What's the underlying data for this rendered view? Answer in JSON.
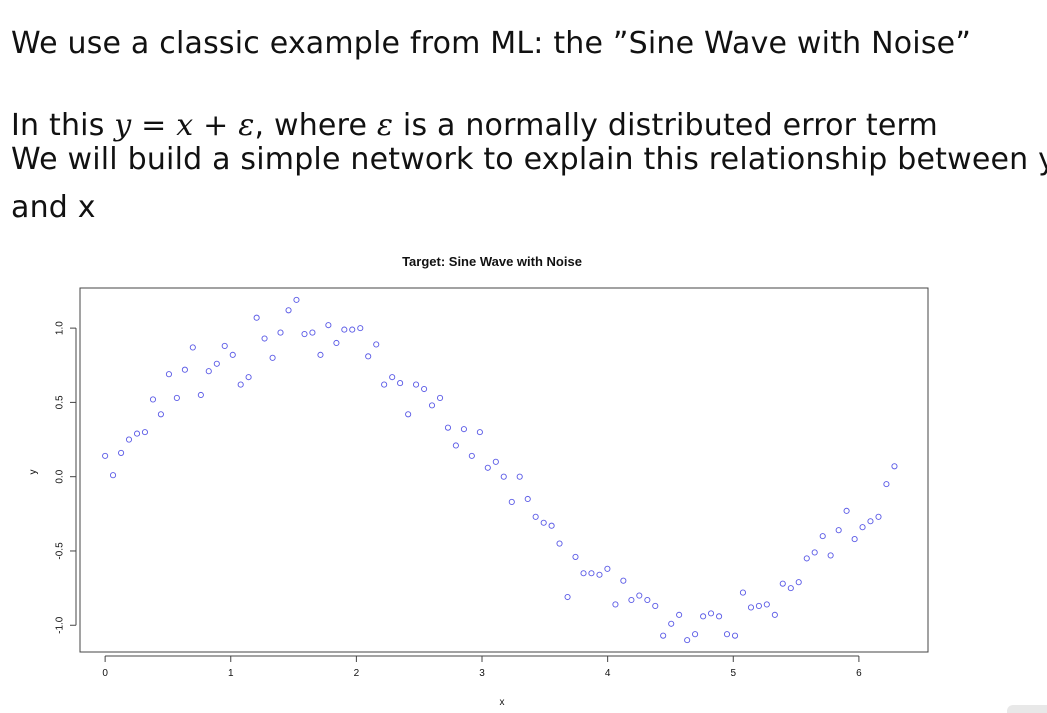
{
  "text": {
    "line1": "We use a classic example from ML: the ”Sine Wave with Noise”",
    "line2_prefix": "In this ",
    "eq_y": "y",
    "eq_eq": " = ",
    "eq_x": "x",
    "eq_plus": " + ",
    "eq_eps": "ε",
    "line2_mid": ", where ",
    "eps2": "ε",
    "line2_suffix": " is a normally distributed error term",
    "line3": "We will build a simple network to explain this relationship between y",
    "line4": "and x"
  },
  "chart_data": {
    "type": "scatter",
    "title": "Target: Sine Wave with Noise",
    "xlabel": "x",
    "ylabel": "y",
    "xlim": [
      -0.2,
      6.55
    ],
    "ylim": [
      -1.18,
      1.27
    ],
    "xticks": [
      0,
      1,
      2,
      3,
      4,
      5,
      6
    ],
    "xtick_labels": [
      "0",
      "1",
      "2",
      "3",
      "4",
      "5",
      "6"
    ],
    "yticks": [
      -1.0,
      -0.5,
      0.0,
      0.5,
      1.0
    ],
    "ytick_labels": [
      "-1.0",
      "-0.5",
      "0.0",
      "0.5",
      "1.0"
    ],
    "grid": false,
    "marker": "open-circle",
    "marker_color": "#5a5ae6",
    "x": [
      0.0,
      0.063,
      0.127,
      0.19,
      0.254,
      0.317,
      0.381,
      0.444,
      0.508,
      0.571,
      0.635,
      0.698,
      0.762,
      0.825,
      0.889,
      0.952,
      1.016,
      1.079,
      1.142,
      1.206,
      1.269,
      1.333,
      1.396,
      1.46,
      1.523,
      1.587,
      1.65,
      1.714,
      1.777,
      1.841,
      1.904,
      1.967,
      2.031,
      2.094,
      2.158,
      2.221,
      2.285,
      2.348,
      2.412,
      2.475,
      2.539,
      2.602,
      2.666,
      2.729,
      2.792,
      2.856,
      2.919,
      2.983,
      3.046,
      3.11,
      3.173,
      3.237,
      3.3,
      3.364,
      3.427,
      3.491,
      3.554,
      3.617,
      3.681,
      3.744,
      3.808,
      3.871,
      3.935,
      3.998,
      4.062,
      4.125,
      4.189,
      4.252,
      4.316,
      4.379,
      4.442,
      4.506,
      4.569,
      4.633,
      4.696,
      4.76,
      4.823,
      4.887,
      4.95,
      5.014,
      5.077,
      5.141,
      5.204,
      5.267,
      5.331,
      5.394,
      5.458,
      5.521,
      5.585,
      5.648,
      5.712,
      5.775,
      5.839,
      5.902,
      5.966,
      6.029,
      6.092,
      6.156,
      6.219,
      6.283
    ],
    "y": [
      0.14,
      0.01,
      0.16,
      0.25,
      0.29,
      0.3,
      0.52,
      0.42,
      0.69,
      0.53,
      0.72,
      0.87,
      0.55,
      0.71,
      0.76,
      0.88,
      0.82,
      0.62,
      0.67,
      1.07,
      0.93,
      0.8,
      0.97,
      1.12,
      1.19,
      0.96,
      0.97,
      0.82,
      1.02,
      0.9,
      0.99,
      0.99,
      1.0,
      0.81,
      0.89,
      0.62,
      0.67,
      0.63,
      0.42,
      0.62,
      0.59,
      0.48,
      0.53,
      0.33,
      0.21,
      0.32,
      0.14,
      0.3,
      0.06,
      0.1,
      0.0,
      -0.17,
      0.0,
      -0.15,
      -0.27,
      -0.31,
      -0.33,
      -0.45,
      -0.81,
      -0.54,
      -0.65,
      -0.65,
      -0.66,
      -0.62,
      -0.86,
      -0.7,
      -0.83,
      -0.8,
      -0.83,
      -0.87,
      -1.07,
      -0.99,
      -0.93,
      -1.1,
      -1.06,
      -0.94,
      -0.92,
      -0.94,
      -1.06,
      -1.07,
      -0.78,
      -0.88,
      -0.87,
      -0.86,
      -0.93,
      -0.72,
      -0.75,
      -0.71,
      -0.55,
      -0.51,
      -0.4,
      -0.53,
      -0.36,
      -0.23,
      -0.42,
      -0.34,
      -0.3,
      -0.27,
      -0.05,
      0.07
    ]
  }
}
